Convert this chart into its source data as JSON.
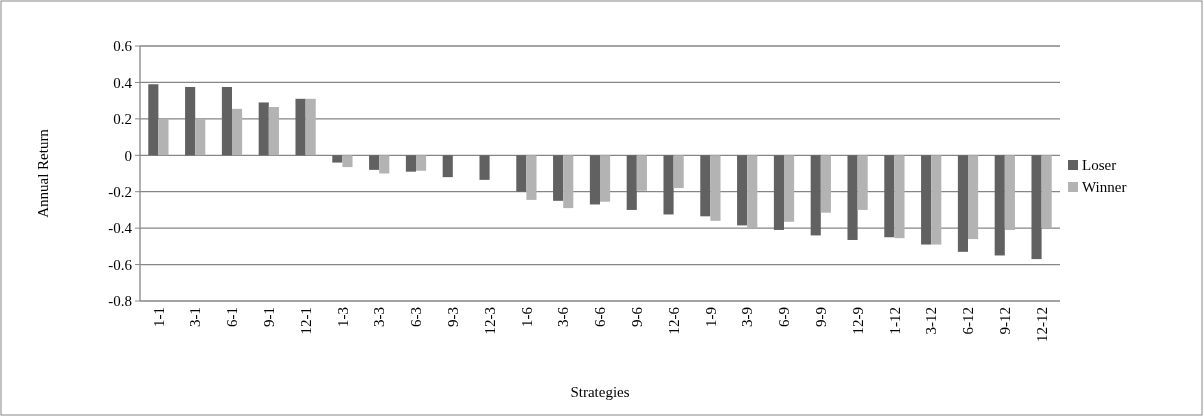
{
  "chart_data": {
    "type": "bar",
    "xlabel": "Strategies",
    "ylabel": "Annual Return",
    "categories": [
      "1-1",
      "3-1",
      "6-1",
      "9-1",
      "12-1",
      "1-3",
      "3-3",
      "6-3",
      "9-3",
      "12-3",
      "1-6",
      "3-6",
      "6-6",
      "9-6",
      "12-6",
      "1-9",
      "3-9",
      "6-9",
      "9-9",
      "12-9",
      "1-12",
      "3-12",
      "6-12",
      "9-12",
      "12-12"
    ],
    "series": [
      {
        "name": "Loser",
        "color": "#616161",
        "values": [
          0.39,
          0.375,
          0.375,
          0.29,
          0.31,
          -0.04,
          -0.08,
          -0.09,
          -0.12,
          -0.135,
          -0.2,
          -0.25,
          -0.27,
          -0.3,
          -0.325,
          -0.335,
          -0.385,
          -0.41,
          -0.44,
          -0.465,
          -0.45,
          -0.49,
          -0.53,
          -0.55,
          -0.57
        ]
      },
      {
        "name": "Winner",
        "color": "#b3b3b3",
        "values": [
          0.2,
          0.2,
          0.255,
          0.265,
          0.31,
          -0.065,
          -0.1,
          -0.085,
          0,
          0,
          -0.245,
          -0.29,
          -0.255,
          -0.195,
          -0.18,
          -0.36,
          -0.4,
          -0.365,
          -0.315,
          -0.3,
          -0.455,
          -0.49,
          -0.46,
          -0.41,
          -0.4
        ]
      }
    ],
    "ylim": [
      -0.8,
      0.6
    ],
    "yticks": [
      {
        "value": -0.8,
        "label": "-0.8"
      },
      {
        "value": -0.6,
        "label": "-0.6"
      },
      {
        "value": -0.4,
        "label": "-0.4"
      },
      {
        "value": -0.2,
        "label": "-0.2"
      },
      0,
      {
        "value": 0.2,
        "label": "0.2"
      },
      {
        "value": 0.4,
        "label": "0.4"
      },
      {
        "value": 0.6,
        "label": "0.6"
      }
    ],
    "grid": "y",
    "legend": "right"
  }
}
